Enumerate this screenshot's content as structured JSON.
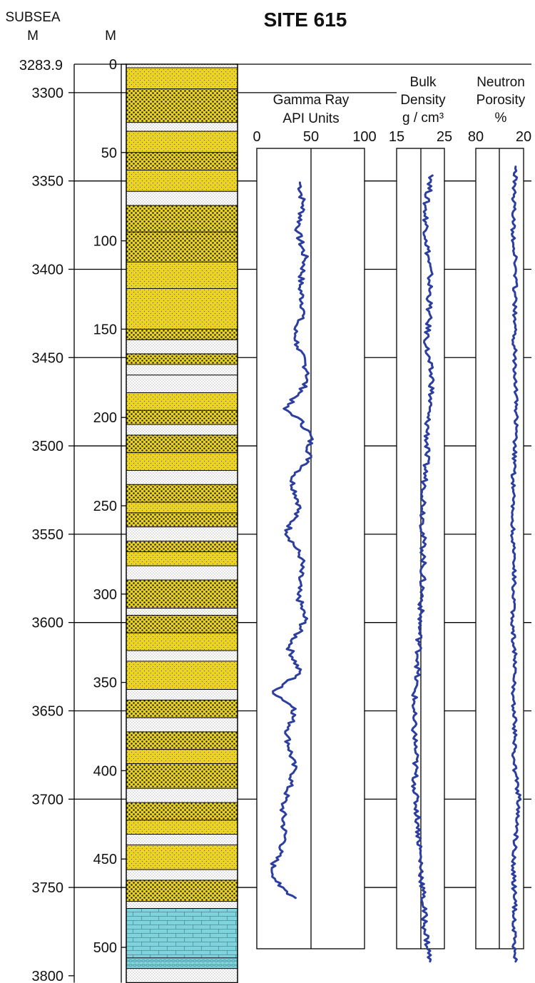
{
  "chart_data": {
    "type": "line",
    "title": "SITE 615",
    "subsea_header": [
      "SUBSEA",
      "M"
    ],
    "depth_header": "M",
    "subsea_top_label": "3283.9",
    "subsea_ticks": [
      3300,
      3350,
      3400,
      3450,
      3500,
      3550,
      3600,
      3650,
      3700,
      3750,
      3800
    ],
    "depth_ticks": [
      0,
      50,
      100,
      150,
      200,
      250,
      300,
      350,
      400,
      450,
      500
    ],
    "depth_range_m": [
      0,
      520
    ],
    "tracks": [
      {
        "header_lines": [
          "Gamma Ray",
          "API Units"
        ],
        "ticks": [
          "0",
          "50",
          "100"
        ],
        "xlim": [
          0,
          100
        ],
        "color": "#2c3e9e",
        "depth": [
          67,
          80,
          95,
          110,
          125,
          140,
          150,
          160,
          175,
          185,
          195,
          200,
          210,
          225,
          235,
          250,
          265,
          280,
          300,
          315,
          330,
          345,
          355,
          365,
          380,
          400,
          420,
          440,
          455,
          465,
          472
        ],
        "values": [
          40,
          43,
          38,
          45,
          40,
          44,
          35,
          38,
          48,
          42,
          25,
          38,
          50,
          48,
          32,
          40,
          28,
          42,
          38,
          45,
          30,
          40,
          15,
          36,
          28,
          35,
          24,
          26,
          14,
          20,
          36
        ]
      },
      {
        "header_lines": [
          "Bulk",
          "Density",
          "g / cm³"
        ],
        "ticks": [
          "15",
          "25"
        ],
        "xlim": [
          15,
          25
        ],
        "color": "#2c3e9e",
        "depth": [
          63,
          80,
          100,
          120,
          140,
          160,
          180,
          200,
          220,
          240,
          260,
          280,
          300,
          320,
          340,
          355,
          370,
          390,
          410,
          430,
          450,
          470,
          490,
          508
        ],
        "values": [
          22.5,
          21,
          21.3,
          22,
          21.8,
          21.2,
          22.5,
          21.5,
          21.3,
          20.8,
          20.5,
          20.6,
          20.3,
          19.8,
          19.5,
          18.8,
          18.5,
          19,
          18.8,
          19.5,
          20,
          20.5,
          21,
          22
        ]
      },
      {
        "header_lines": [
          "Neutron",
          "Porosity",
          "%"
        ],
        "ticks": [
          "80",
          "20"
        ],
        "xlim": [
          80,
          20
        ],
        "color": "#2c3e9e",
        "depth": [
          58,
          75,
          95,
          115,
          135,
          155,
          175,
          195,
          215,
          235,
          255,
          275,
          295,
          315,
          335,
          355,
          375,
          395,
          415,
          435,
          455,
          475,
          495,
          508
        ],
        "values": [
          30,
          32,
          33,
          30,
          31,
          32,
          30,
          29,
          31,
          33,
          34,
          33,
          32,
          34,
          31,
          33,
          31,
          32,
          26,
          29,
          33,
          31,
          32,
          30
        ]
      }
    ]
  }
}
